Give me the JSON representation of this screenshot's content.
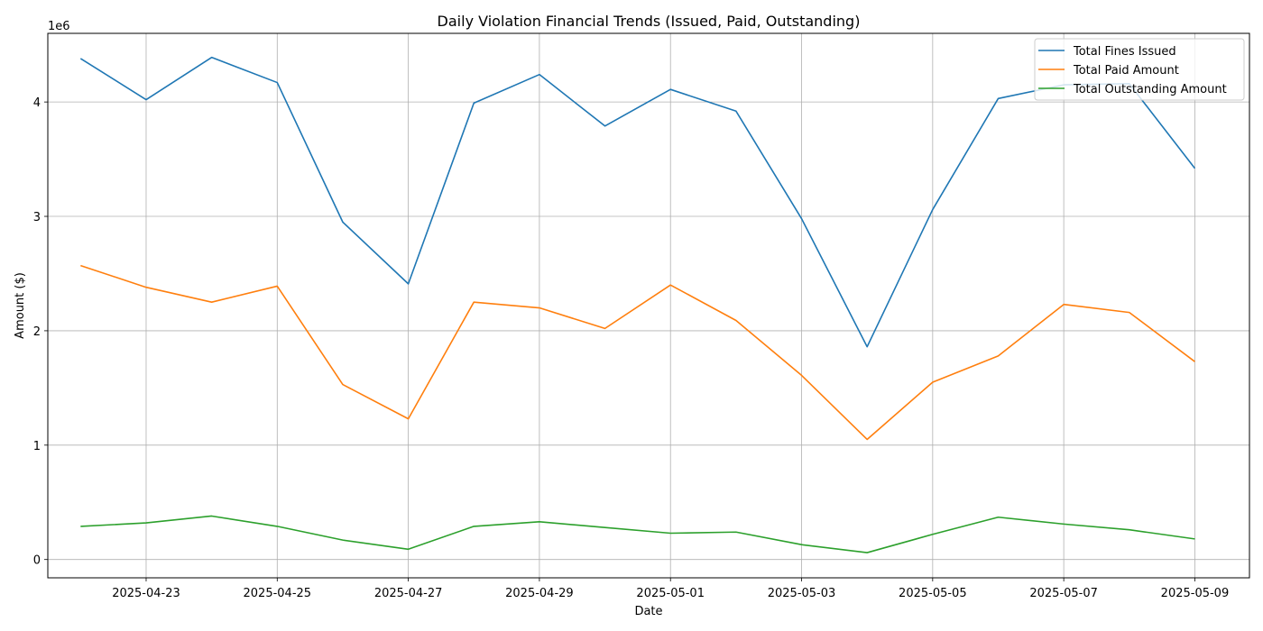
{
  "chart_data": {
    "type": "line",
    "title": "Daily Violation Financial Trends (Issued, Paid, Outstanding)",
    "xlabel": "Date",
    "ylabel": "Amount ($)",
    "y_offset_label": "1e6",
    "x": [
      "2025-04-22",
      "2025-04-23",
      "2025-04-24",
      "2025-04-25",
      "2025-04-26",
      "2025-04-27",
      "2025-04-28",
      "2025-04-29",
      "2025-04-30",
      "2025-05-01",
      "2025-05-02",
      "2025-05-03",
      "2025-05-04",
      "2025-05-05",
      "2025-05-06",
      "2025-05-07",
      "2025-05-08",
      "2025-05-09"
    ],
    "x_ticks": [
      "2025-04-23",
      "2025-04-25",
      "2025-04-27",
      "2025-04-29",
      "2025-05-01",
      "2025-05-03",
      "2025-05-05",
      "2025-05-07",
      "2025-05-09"
    ],
    "y_ticks": [
      0,
      1,
      2,
      3,
      4
    ],
    "ylim": [
      -0.16,
      4.6
    ],
    "xlim": [
      "2025-04-21 12:00",
      "2025-05-09 20:00"
    ],
    "grid": true,
    "legend_position": "top-right",
    "series": [
      {
        "name": "Total Fines Issued",
        "color": "#1f77b4",
        "values": [
          4.38,
          4.02,
          4.39,
          4.17,
          2.95,
          2.41,
          3.99,
          4.24,
          3.79,
          4.11,
          3.92,
          2.98,
          1.86,
          3.06,
          4.03,
          4.15,
          4.16,
          3.42
        ]
      },
      {
        "name": "Total Paid Amount",
        "color": "#ff7f0e",
        "values": [
          2.57,
          2.38,
          2.25,
          2.39,
          1.53,
          1.23,
          2.25,
          2.2,
          2.02,
          2.4,
          2.09,
          1.61,
          1.05,
          1.55,
          1.78,
          2.23,
          2.16,
          1.73
        ]
      },
      {
        "name": "Total Outstanding Amount",
        "color": "#2ca02c",
        "values": [
          0.29,
          0.32,
          0.38,
          0.29,
          0.17,
          0.09,
          0.29,
          0.33,
          0.28,
          0.23,
          0.24,
          0.13,
          0.06,
          0.22,
          0.37,
          0.31,
          0.26,
          0.18
        ]
      }
    ]
  }
}
